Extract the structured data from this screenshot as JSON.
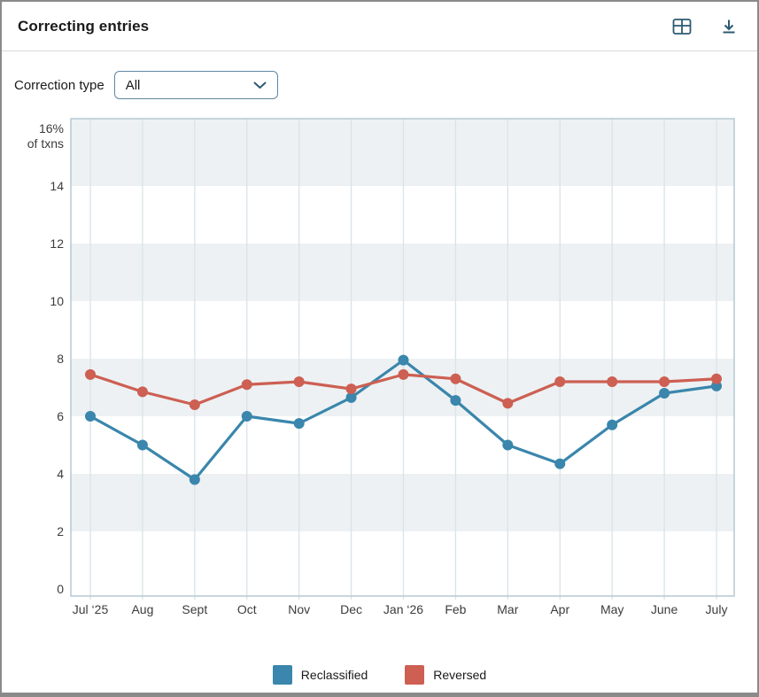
{
  "header": {
    "title": "Correcting entries",
    "actions": [
      {
        "name": "table-view",
        "icon": "table-icon"
      },
      {
        "name": "download",
        "icon": "download-icon"
      }
    ],
    "icon_color": "#2d5a73"
  },
  "controls": {
    "label": "Correction type",
    "selected": "All"
  },
  "chart_data": {
    "type": "line",
    "title": "Correcting entries",
    "x": [
      "Jul ‘25",
      "Aug",
      "Sept",
      "Oct",
      "Nov",
      "Dec",
      "Jan ‘26",
      "Feb",
      "Mar",
      "Apr",
      "May",
      "June",
      "July"
    ],
    "series": [
      {
        "name": "Reclassified",
        "color": "#3a86ac",
        "values": [
          6.0,
          5.0,
          3.8,
          6.0,
          5.75,
          6.65,
          7.95,
          6.55,
          5.0,
          4.35,
          5.7,
          6.8,
          7.05
        ]
      },
      {
        "name": "Reversed",
        "color": "#cd5f53",
        "values": [
          7.45,
          6.85,
          6.4,
          7.1,
          7.2,
          6.95,
          7.45,
          7.3,
          6.45,
          7.2,
          7.2,
          7.2,
          7.3
        ]
      }
    ],
    "ylabel": "% of txns",
    "y_top_label": "16%",
    "y_top_sublabel": "of txns",
    "yticks": [
      0,
      2,
      4,
      6,
      8,
      10,
      12,
      14
    ],
    "ylim": [
      0,
      16.4
    ],
    "grid": true,
    "legend_position": "bottom",
    "band_color": "#edf1f3",
    "grid_color": "#d9e3e9",
    "frame_color": "#b5c9d4",
    "tick_label_color": "#3c3c3c"
  },
  "legend": {
    "items": [
      {
        "label": "Reclassified",
        "color": "#3a86ac"
      },
      {
        "label": "Reversed",
        "color": "#cd5f53"
      }
    ]
  }
}
